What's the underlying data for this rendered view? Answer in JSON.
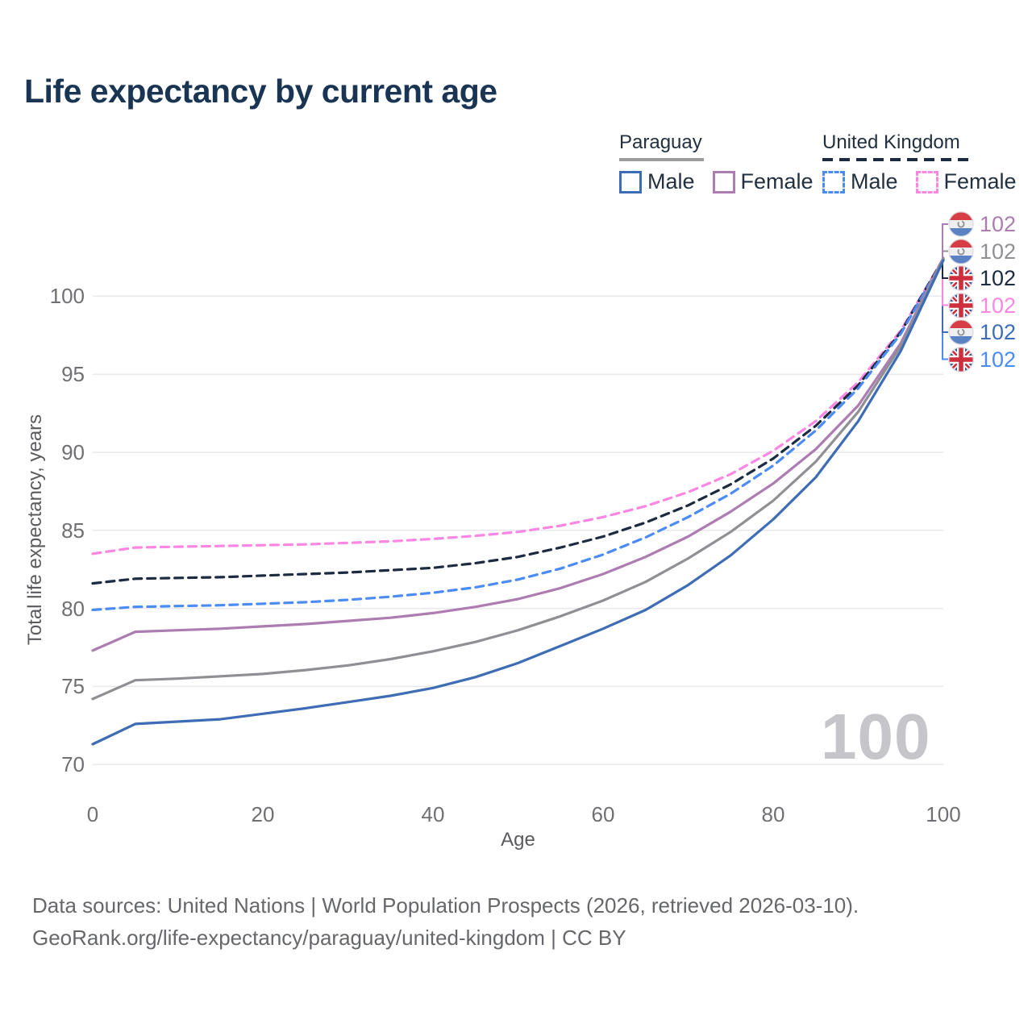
{
  "title": "Life expectancy by current age",
  "legend": {
    "paraguay": {
      "label": "Paraguay",
      "male_label": "Male",
      "female_label": "Female"
    },
    "united_kingdom": {
      "label": "United Kingdom",
      "male_label": "Male",
      "female_label": "Female"
    }
  },
  "colors": {
    "paraguay_male": "#3e6db5",
    "paraguay_female": "#ad7cb0",
    "paraguay_all": "#8f9094",
    "uk_male": "#4b8bf4",
    "uk_female": "#fb86e4",
    "uk_all": "#1c2b40",
    "grid": "#e9e9ec",
    "axis_text": "#6f7073",
    "title_text": "#1a3553",
    "legend_text": "#22303f",
    "paraguay_underline": "#9b9b9b",
    "watermark": "#c6c6ca",
    "footer_text": "#65676a",
    "flag_py_red": "#d63d44",
    "flag_py_white": "#efeff1",
    "flag_py_blue": "#5b83c4",
    "flag_uk_blue": "#3c5a9e",
    "flag_uk_red": "#cf2e3c"
  },
  "age_indicator": "100",
  "footer": {
    "line1": "Data sources: United Nations | World Population Prospects (2026, retrieved 2026-03-10).",
    "line2": "GeoRank.org/life-expectancy/paraguay/united-kingdom | CC BY"
  },
  "chart_data": {
    "type": "line",
    "title": "Life expectancy by current age",
    "xlabel": "Age",
    "ylabel": "Total life expectancy, years",
    "xlim": [
      0,
      100
    ],
    "ylim": [
      70,
      103
    ],
    "x_ticks": [
      0,
      20,
      40,
      60,
      80,
      100
    ],
    "y_ticks": [
      70,
      75,
      80,
      85,
      90,
      95,
      100
    ],
    "grid": "horizontal",
    "legend_position": "top-right",
    "ages": [
      0,
      5,
      10,
      15,
      20,
      25,
      30,
      35,
      40,
      45,
      50,
      55,
      60,
      65,
      70,
      75,
      80,
      85,
      90,
      95,
      100
    ],
    "series": [
      {
        "name": "United Kingdom Female",
        "country": "united_kingdom",
        "sex": "female",
        "style": "dashed",
        "color_key": "uk_female",
        "values": [
          83.5,
          83.9,
          83.95,
          84.0,
          84.05,
          84.1,
          84.2,
          84.3,
          84.45,
          84.65,
          84.9,
          85.3,
          85.85,
          86.55,
          87.45,
          88.6,
          90.1,
          92.0,
          94.5,
          97.8,
          102.4
        ]
      },
      {
        "name": "United Kingdom All",
        "country": "united_kingdom",
        "sex": "all",
        "style": "dashed",
        "color_key": "uk_all",
        "values": [
          81.6,
          81.9,
          81.95,
          82.0,
          82.1,
          82.2,
          82.3,
          82.45,
          82.6,
          82.9,
          83.3,
          83.9,
          84.6,
          85.5,
          86.6,
          87.95,
          89.6,
          91.7,
          94.3,
          97.7,
          102.4
        ]
      },
      {
        "name": "United Kingdom Male",
        "country": "united_kingdom",
        "sex": "male",
        "style": "dashed",
        "color_key": "uk_male",
        "values": [
          79.9,
          80.1,
          80.15,
          80.2,
          80.3,
          80.4,
          80.55,
          80.75,
          81.0,
          81.35,
          81.85,
          82.55,
          83.45,
          84.55,
          85.85,
          87.35,
          89.15,
          91.4,
          94.1,
          97.6,
          102.35
        ]
      },
      {
        "name": "Paraguay Female",
        "country": "paraguay",
        "sex": "female",
        "style": "solid",
        "color_key": "paraguay_female",
        "values": [
          77.3,
          78.5,
          78.6,
          78.7,
          78.85,
          79.0,
          79.2,
          79.4,
          79.7,
          80.1,
          80.6,
          81.3,
          82.2,
          83.3,
          84.6,
          86.2,
          88.0,
          90.2,
          93.0,
          97.0,
          102.45
        ]
      },
      {
        "name": "Paraguay All",
        "country": "paraguay",
        "sex": "all",
        "style": "solid",
        "color_key": "paraguay_all",
        "values": [
          74.2,
          75.4,
          75.5,
          75.65,
          75.8,
          76.05,
          76.35,
          76.75,
          77.25,
          77.85,
          78.6,
          79.5,
          80.5,
          81.7,
          83.2,
          84.9,
          86.9,
          89.4,
          92.6,
          96.8,
          102.4
        ]
      },
      {
        "name": "Paraguay Male",
        "country": "paraguay",
        "sex": "male",
        "style": "solid",
        "color_key": "paraguay_male",
        "values": [
          71.3,
          72.6,
          72.75,
          72.9,
          73.25,
          73.6,
          74.0,
          74.4,
          74.9,
          75.6,
          76.5,
          77.6,
          78.7,
          79.9,
          81.5,
          83.4,
          85.7,
          88.4,
          92.0,
          96.5,
          102.3
        ]
      }
    ],
    "end_labels": [
      {
        "country": "paraguay",
        "sex": "female",
        "value": "102",
        "color_key": "paraguay_female"
      },
      {
        "country": "paraguay",
        "sex": "all",
        "value": "102",
        "color_key": "paraguay_all"
      },
      {
        "country": "united_kingdom",
        "sex": "all",
        "value": "102",
        "color_key": "uk_all"
      },
      {
        "country": "united_kingdom",
        "sex": "female",
        "value": "102",
        "color_key": "uk_female"
      },
      {
        "country": "paraguay",
        "sex": "male",
        "value": "102",
        "color_key": "paraguay_male"
      },
      {
        "country": "united_kingdom",
        "sex": "male",
        "value": "102",
        "color_key": "uk_male"
      }
    ]
  }
}
